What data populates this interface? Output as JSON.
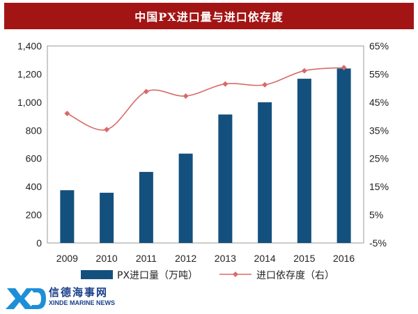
{
  "chart_data": {
    "type": "bar",
    "title": "中国PX进口量与进口依存度",
    "categories": [
      "2009",
      "2010",
      "2011",
      "2012",
      "2013",
      "2014",
      "2015",
      "2016"
    ],
    "series": [
      {
        "name": "PX进口量（万吨）",
        "type": "bar",
        "axis": "left",
        "color": "#14507e",
        "values": [
          375,
          357,
          505,
          635,
          913,
          1000,
          1167,
          1240
        ]
      },
      {
        "name": "进口依存度（右）",
        "type": "line",
        "axis": "right",
        "color": "#d86a6a",
        "values": [
          41,
          35.3,
          48.8,
          47.2,
          51.5,
          51.2,
          56.2,
          57.3
        ]
      }
    ],
    "y_left": {
      "min": 0,
      "max": 1400,
      "step": 200,
      "ticks": [
        "0",
        "200",
        "400",
        "600",
        "800",
        "1,000",
        "1,200",
        "1,400"
      ]
    },
    "y_right": {
      "min": -5,
      "max": 65,
      "step": 10,
      "ticks": [
        "-5%",
        "5%",
        "15%",
        "25%",
        "35%",
        "45%",
        "55%",
        "65%"
      ]
    },
    "grid": false,
    "legend": "bottom"
  },
  "watermark": {
    "cn": "信德海事网",
    "en": "XINDE MARINE NEWS"
  }
}
